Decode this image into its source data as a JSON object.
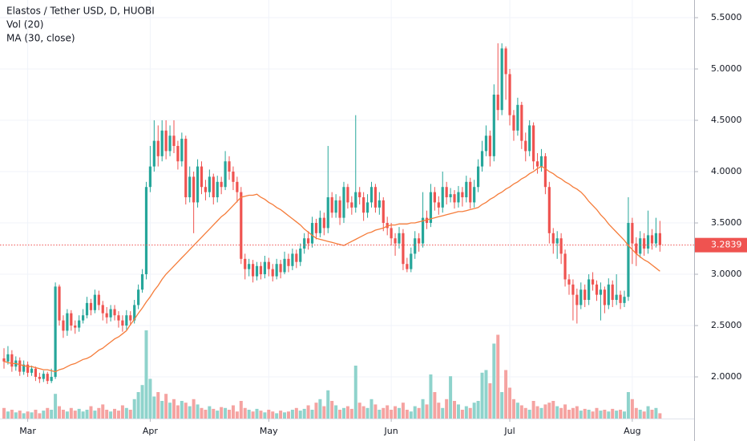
{
  "chart_data": {
    "type": "candlestick",
    "title": "Elastos / Tether USD, D, HUOBI",
    "indicators": [
      "Vol (20)",
      "MA (30, close)"
    ],
    "colors": {
      "up": "#26a69a",
      "down": "#ef5350",
      "ma": "#f57c3a",
      "up_volume": "#8fd3cc",
      "down_volume": "#f5a3a1"
    },
    "grid": true,
    "ylim": [
      1.594,
      5.672
    ],
    "yticks": [
      {
        "value": 2.0,
        "label": "2.0000"
      },
      {
        "value": 2.5,
        "label": "2.5000"
      },
      {
        "value": 3.0,
        "label": "3.0000"
      },
      {
        "value": 3.5,
        "label": "3.5000"
      },
      {
        "value": 4.0,
        "label": "4.0000"
      },
      {
        "value": 4.5,
        "label": "4.5000"
      },
      {
        "value": 5.0,
        "label": "5.0000"
      },
      {
        "value": 5.5,
        "label": "5.5000"
      }
    ],
    "xticks": [
      {
        "value": 6,
        "label": "Mar"
      },
      {
        "value": 37,
        "label": "Apr"
      },
      {
        "value": 67,
        "label": "May"
      },
      {
        "value": 98,
        "label": "Jun"
      },
      {
        "value": 128,
        "label": "Jul"
      },
      {
        "value": 159,
        "label": "Aug"
      }
    ],
    "open": [
      2.18,
      2.15,
      2.22,
      2.1,
      2.16,
      2.05,
      2.12,
      2.04,
      2.08,
      2.0,
      1.98,
      2.03,
      1.96,
      2.0,
      2.88,
      2.55,
      2.45,
      2.62,
      2.5,
      2.48,
      2.55,
      2.6,
      2.72,
      2.65,
      2.8,
      2.7,
      2.62,
      2.58,
      2.66,
      2.6,
      2.55,
      2.5,
      2.6,
      2.55,
      2.7,
      2.85,
      3.0,
      3.85,
      4.05,
      4.3,
      4.15,
      4.4,
      4.2,
      4.35,
      4.25,
      4.1,
      4.32,
      3.75,
      3.95,
      3.7,
      4.05,
      3.85,
      3.8,
      3.95,
      3.75,
      3.9,
      3.85,
      4.1,
      4.0,
      3.9,
      3.8,
      3.15,
      3.05,
      3.1,
      2.98,
      3.08,
      3.0,
      3.12,
      3.05,
      2.98,
      3.1,
      3.02,
      3.15,
      3.08,
      3.2,
      3.12,
      3.25,
      3.35,
      3.3,
      3.5,
      3.4,
      3.55,
      3.45,
      3.75,
      3.6,
      3.72,
      3.55,
      3.85,
      3.7,
      3.65,
      3.8,
      3.75,
      3.6,
      3.7,
      3.85,
      3.65,
      3.72,
      3.5,
      3.45,
      3.35,
      3.3,
      3.4,
      3.1,
      3.05,
      3.2,
      3.35,
      3.3,
      3.55,
      3.5,
      3.8,
      3.7,
      3.65,
      3.85,
      3.75,
      3.78,
      3.7,
      3.8,
      3.75,
      3.9,
      3.7,
      3.85,
      4.05,
      4.2,
      4.35,
      4.15,
      4.75,
      4.6,
      5.2,
      4.95,
      4.55,
      4.4,
      4.65,
      4.3,
      4.2,
      4.45,
      4.1,
      4.05,
      4.15,
      3.85,
      3.4,
      3.3,
      3.35,
      3.2,
      2.95,
      2.9,
      2.8,
      2.7,
      2.85,
      2.75,
      2.95,
      2.9,
      2.8,
      2.85,
      2.7,
      2.9,
      2.75,
      2.8,
      2.72,
      2.78,
      3.5,
      3.3,
      3.2,
      3.35,
      3.25,
      3.38,
      3.3,
      3.4
    ],
    "high": [
      2.28,
      2.3,
      2.26,
      2.2,
      2.19,
      2.16,
      2.15,
      2.11,
      2.1,
      2.04,
      2.06,
      2.05,
      2.08,
      2.92,
      2.9,
      2.6,
      2.66,
      2.65,
      2.55,
      2.6,
      2.66,
      2.78,
      2.76,
      2.85,
      2.84,
      2.74,
      2.68,
      2.7,
      2.7,
      2.64,
      2.6,
      2.65,
      2.64,
      2.75,
      2.9,
      3.05,
      3.9,
      4.25,
      4.5,
      4.45,
      4.5,
      4.5,
      4.45,
      4.5,
      4.3,
      4.38,
      4.35,
      4.05,
      4.0,
      4.12,
      4.1,
      3.92,
      4.02,
      3.98,
      3.96,
      3.95,
      4.2,
      4.15,
      4.05,
      3.95,
      3.85,
      3.2,
      3.15,
      3.14,
      3.12,
      3.12,
      3.18,
      3.16,
      3.1,
      3.15,
      3.14,
      3.22,
      3.2,
      3.25,
      3.24,
      3.3,
      3.4,
      3.42,
      3.56,
      3.54,
      3.62,
      3.6,
      4.25,
      3.8,
      3.78,
      3.76,
      3.9,
      3.88,
      3.76,
      4.55,
      3.85,
      3.8,
      3.78,
      3.9,
      3.88,
      3.8,
      3.75,
      3.56,
      3.5,
      3.4,
      3.46,
      3.44,
      3.16,
      3.26,
      3.42,
      3.4,
      3.8,
      3.62,
      3.88,
      3.85,
      3.76,
      4.0,
      3.9,
      3.84,
      3.82,
      3.86,
      3.85,
      3.96,
      3.94,
      3.92,
      4.12,
      4.3,
      4.45,
      4.4,
      4.85,
      5.25,
      5.25,
      5.22,
      5.0,
      4.6,
      4.72,
      4.68,
      4.38,
      4.5,
      4.48,
      4.18,
      4.22,
      4.18,
      3.9,
      3.45,
      3.42,
      3.4,
      3.24,
      3.0,
      2.95,
      2.86,
      2.92,
      2.9,
      3.0,
      3.02,
      2.94,
      2.92,
      2.88,
      2.96,
      2.94,
      3.0,
      2.84,
      2.84,
      3.75,
      3.55,
      3.36,
      3.42,
      3.4,
      3.62,
      3.44,
      3.55,
      3.52
    ],
    "low": [
      2.08,
      2.12,
      2.05,
      2.06,
      2.01,
      2.02,
      2.0,
      2.01,
      1.96,
      1.94,
      1.95,
      1.93,
      1.94,
      1.98,
      2.5,
      2.38,
      2.4,
      2.45,
      2.42,
      2.44,
      2.52,
      2.57,
      2.6,
      2.62,
      2.65,
      2.55,
      2.52,
      2.54,
      2.55,
      2.48,
      2.44,
      2.46,
      2.5,
      2.52,
      2.66,
      2.82,
      2.95,
      3.8,
      4.0,
      4.05,
      4.1,
      4.12,
      4.15,
      4.18,
      4.02,
      4.05,
      3.68,
      3.7,
      3.4,
      3.65,
      3.78,
      3.72,
      3.75,
      3.68,
      3.7,
      3.78,
      3.82,
      3.92,
      3.82,
      3.7,
      3.1,
      2.95,
      2.98,
      2.92,
      2.94,
      2.95,
      2.96,
      2.98,
      2.93,
      2.95,
      2.96,
      3.0,
      3.02,
      3.04,
      3.06,
      3.08,
      3.2,
      3.24,
      3.26,
      3.34,
      3.36,
      3.38,
      3.4,
      3.55,
      3.55,
      3.48,
      3.5,
      3.64,
      3.58,
      3.6,
      3.68,
      3.52,
      3.55,
      3.65,
      3.6,
      3.58,
      3.42,
      3.38,
      3.28,
      3.18,
      3.25,
      3.04,
      3.02,
      3.02,
      3.15,
      3.22,
      3.26,
      3.44,
      3.46,
      3.62,
      3.58,
      3.6,
      3.68,
      3.7,
      3.64,
      3.65,
      3.66,
      3.7,
      3.64,
      3.65,
      3.8,
      4.0,
      4.15,
      4.05,
      4.1,
      4.5,
      4.55,
      4.7,
      4.45,
      4.3,
      4.35,
      4.22,
      4.1,
      4.15,
      4.02,
      3.98,
      4.0,
      3.78,
      3.3,
      3.2,
      3.15,
      3.1,
      2.88,
      2.8,
      2.55,
      2.52,
      2.66,
      2.68,
      2.7,
      2.84,
      2.74,
      2.55,
      2.62,
      2.66,
      2.68,
      2.7,
      2.66,
      2.68,
      2.74,
      3.1,
      3.08,
      3.16,
      3.18,
      3.2,
      3.24,
      3.26,
      3.22
    ],
    "close": [
      2.15,
      2.22,
      2.1,
      2.16,
      2.05,
      2.12,
      2.04,
      2.08,
      2.0,
      1.98,
      2.03,
      1.96,
      2.0,
      2.88,
      2.55,
      2.45,
      2.62,
      2.5,
      2.48,
      2.55,
      2.6,
      2.72,
      2.65,
      2.8,
      2.7,
      2.62,
      2.58,
      2.66,
      2.6,
      2.55,
      2.5,
      2.6,
      2.55,
      2.7,
      2.85,
      3.0,
      3.85,
      4.05,
      4.3,
      4.15,
      4.4,
      4.2,
      4.35,
      4.25,
      4.1,
      4.32,
      3.75,
      3.95,
      3.7,
      4.05,
      3.85,
      3.8,
      3.95,
      3.75,
      3.9,
      3.85,
      4.1,
      4.0,
      3.9,
      3.8,
      3.15,
      3.05,
      3.1,
      2.98,
      3.08,
      3.0,
      3.12,
      3.05,
      2.98,
      3.1,
      3.02,
      3.15,
      3.08,
      3.2,
      3.12,
      3.25,
      3.35,
      3.3,
      3.5,
      3.4,
      3.55,
      3.45,
      3.75,
      3.6,
      3.72,
      3.55,
      3.85,
      3.7,
      3.65,
      3.8,
      3.75,
      3.6,
      3.7,
      3.85,
      3.65,
      3.72,
      3.5,
      3.45,
      3.35,
      3.3,
      3.4,
      3.1,
      3.05,
      3.2,
      3.35,
      3.3,
      3.55,
      3.5,
      3.8,
      3.7,
      3.65,
      3.85,
      3.75,
      3.78,
      3.7,
      3.8,
      3.75,
      3.9,
      3.7,
      3.85,
      4.05,
      4.2,
      4.35,
      4.15,
      4.75,
      4.6,
      5.2,
      4.95,
      4.55,
      4.4,
      4.65,
      4.3,
      4.2,
      4.45,
      4.1,
      4.05,
      4.15,
      3.85,
      3.4,
      3.3,
      3.35,
      3.2,
      2.95,
      2.9,
      2.8,
      2.7,
      2.85,
      2.75,
      2.95,
      2.9,
      2.8,
      2.85,
      2.7,
      2.9,
      2.75,
      2.8,
      2.72,
      2.78,
      3.5,
      3.3,
      3.2,
      3.35,
      3.25,
      3.38,
      3.3,
      3.4,
      3.2839
    ],
    "volume": [
      12,
      8,
      10,
      7,
      9,
      6,
      8,
      7,
      10,
      6,
      9,
      12,
      10,
      28,
      14,
      10,
      8,
      12,
      9,
      11,
      8,
      10,
      14,
      9,
      12,
      16,
      10,
      8,
      11,
      9,
      15,
      12,
      10,
      22,
      30,
      38,
      100,
      45,
      25,
      30,
      20,
      28,
      18,
      22,
      15,
      20,
      18,
      14,
      22,
      16,
      12,
      10,
      14,
      11,
      9,
      13,
      12,
      10,
      15,
      8,
      20,
      12,
      10,
      8,
      11,
      9,
      7,
      10,
      8,
      6,
      9,
      7,
      8,
      10,
      12,
      9,
      11,
      15,
      10,
      18,
      22,
      14,
      32,
      20,
      15,
      10,
      12,
      14,
      11,
      60,
      18,
      14,
      12,
      22,
      16,
      10,
      12,
      15,
      10,
      14,
      12,
      18,
      10,
      8,
      14,
      12,
      22,
      16,
      50,
      30,
      18,
      12,
      22,
      48,
      20,
      16,
      10,
      14,
      12,
      18,
      20,
      52,
      55,
      40,
      85,
      95,
      30,
      55,
      35,
      22,
      18,
      15,
      12,
      10,
      20,
      14,
      12,
      16,
      18,
      20,
      14,
      12,
      16,
      10,
      12,
      14,
      9,
      11,
      10,
      8,
      12,
      9,
      10,
      8,
      11,
      9,
      10,
      8,
      30,
      22,
      12,
      10,
      8,
      14,
      10,
      12,
      6
    ],
    "ma": [
      2.15,
      2.14,
      2.13,
      2.13,
      2.12,
      2.11,
      2.1,
      2.1,
      2.09,
      2.08,
      2.07,
      2.07,
      2.06,
      2.05,
      2.07,
      2.08,
      2.1,
      2.12,
      2.13,
      2.15,
      2.17,
      2.18,
      2.2,
      2.23,
      2.26,
      2.28,
      2.31,
      2.34,
      2.37,
      2.39,
      2.42,
      2.45,
      2.51,
      2.56,
      2.62,
      2.67,
      2.73,
      2.78,
      2.84,
      2.89,
      2.95,
      3.0,
      3.04,
      3.08,
      3.12,
      3.16,
      3.2,
      3.24,
      3.28,
      3.32,
      3.36,
      3.4,
      3.44,
      3.48,
      3.52,
      3.56,
      3.59,
      3.63,
      3.67,
      3.71,
      3.75,
      3.76,
      3.77,
      3.77,
      3.78,
      3.75,
      3.73,
      3.7,
      3.68,
      3.65,
      3.63,
      3.6,
      3.57,
      3.54,
      3.51,
      3.48,
      3.44,
      3.41,
      3.38,
      3.35,
      3.34,
      3.33,
      3.32,
      3.31,
      3.3,
      3.29,
      3.28,
      3.3,
      3.32,
      3.34,
      3.36,
      3.38,
      3.4,
      3.41,
      3.43,
      3.44,
      3.45,
      3.47,
      3.48,
      3.48,
      3.49,
      3.49,
      3.49,
      3.5,
      3.5,
      3.51,
      3.52,
      3.53,
      3.54,
      3.55,
      3.56,
      3.57,
      3.58,
      3.59,
      3.6,
      3.61,
      3.61,
      3.62,
      3.63,
      3.64,
      3.65,
      3.68,
      3.7,
      3.73,
      3.75,
      3.78,
      3.8,
      3.83,
      3.85,
      3.88,
      3.9,
      3.93,
      3.95,
      3.98,
      4.0,
      4.03,
      4.05,
      4.03,
      4.0,
      3.98,
      3.95,
      3.93,
      3.9,
      3.88,
      3.85,
      3.83,
      3.8,
      3.76,
      3.71,
      3.67,
      3.63,
      3.58,
      3.54,
      3.49,
      3.45,
      3.41,
      3.37,
      3.33,
      3.28,
      3.24,
      3.2,
      3.17,
      3.14,
      3.12,
      3.09,
      3.06,
      3.03
    ]
  }
}
